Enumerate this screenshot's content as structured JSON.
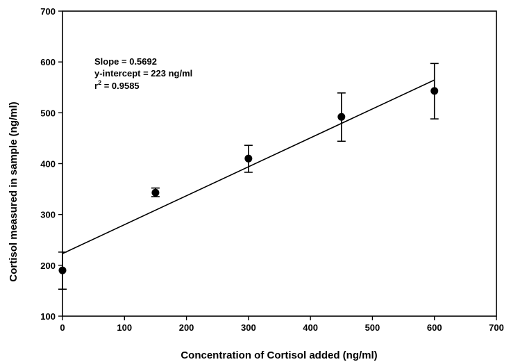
{
  "chart_data": {
    "type": "scatter",
    "xlabel": "Concentration of Cortisol added (ng/ml)",
    "ylabel": "Cortisol measured in sample (ng/ml)",
    "xlim": [
      0,
      700
    ],
    "ylim": [
      100,
      700
    ],
    "xticks": [
      "0",
      "100",
      "200",
      "300",
      "400",
      "500",
      "600",
      "700"
    ],
    "yticks": [
      "100",
      "200",
      "300",
      "400",
      "500",
      "600",
      "700"
    ],
    "grid": false,
    "points": [
      {
        "x": 0,
        "y": 190,
        "err_low": 153,
        "err_high": 226
      },
      {
        "x": 150,
        "y": 343,
        "err_low": 335,
        "err_high": 352
      },
      {
        "x": 300,
        "y": 410,
        "err_low": 383,
        "err_high": 436
      },
      {
        "x": 450,
        "y": 492,
        "err_low": 444,
        "err_high": 539
      },
      {
        "x": 600,
        "y": 543,
        "err_low": 488,
        "err_high": 597
      }
    ],
    "fit_line": {
      "slope": 0.5692,
      "intercept": 223,
      "x_range": [
        0,
        600
      ]
    },
    "annotation": {
      "slope_text": "Slope = 0.5692",
      "intercept_text": "y-intercept = 223 ng/ml",
      "r2_prefix": "r",
      "r2_sup": "2",
      "r2_suffix": " = 0.9585"
    }
  }
}
